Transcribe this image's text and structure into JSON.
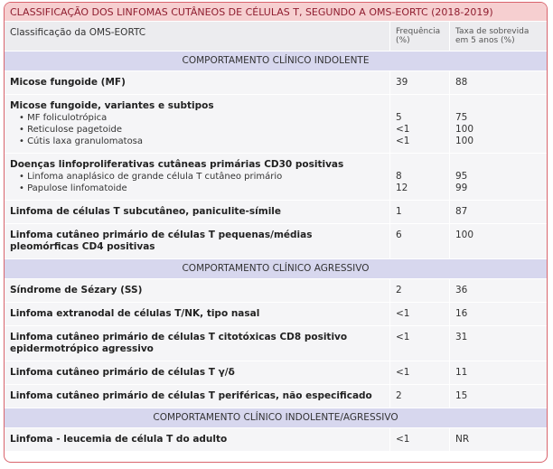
{
  "title": "CLASSIFICAÇÃO DOS LINFOMAS CUTÂNEOS DE CÉLULAS T, SEGUNDO A OMS-EORTC (2018-2019)",
  "header": [
    "Classificação da OMS-EORTC",
    "Frequência (%)",
    "Taxa de sobrevida em 5 anos (%)"
  ],
  "sections": [
    {
      "title": "COMPORTAMENTO CLÍNICO INDOLENTE",
      "rows": [
        {
          "label": "Micose fungoide (MF)",
          "freq": "39",
          "survival": "88"
        },
        {
          "label": "Micose fungoide, variantes e subtipos",
          "items": [
            {
              "label": "MF foliculotrópica",
              "freq": "5",
              "survival": "75"
            },
            {
              "label": "Reticulose pagetoide",
              "freq": "<1",
              "survival": "100"
            },
            {
              "label": "Cútis laxa granulomatosa",
              "freq": "<1",
              "survival": "100"
            }
          ]
        },
        {
          "label": "Doenças linfoproliferativas cutâneas primárias CD30 positivas",
          "items": [
            {
              "label": "Linfoma anaplásico de grande célula T cutâneo primário",
              "freq": "8",
              "survival": "95"
            },
            {
              "label": "Papulose linfomatoide",
              "freq": "12",
              "survival": "99"
            }
          ]
        },
        {
          "label": "Linfoma de células T subcutâneo, paniculite-símile",
          "freq": "1",
          "survival": "87"
        },
        {
          "label": [
            "Linfoma cutâneo primário de células T pequenas/médias",
            "pleomórficas CD4 positivas"
          ],
          "freq": "6",
          "survival": "100"
        }
      ]
    },
    {
      "title": "COMPORTAMENTO CLÍNICO AGRESSIVO",
      "rows": [
        {
          "label": "Síndrome de Sézary (SS)",
          "freq": "2",
          "survival": "36"
        },
        {
          "label": "Linfoma extranodal de células T/NK, tipo nasal",
          "freq": "<1",
          "survival": "16"
        },
        {
          "label": [
            "Linfoma cutâneo primário de células T citotóxicas CD8 positivo",
            "epidermotrópico agressivo"
          ],
          "freq": "<1",
          "survival": "31"
        },
        {
          "label": "Linfoma cutâneo primário de células T γ/δ",
          "freq": "<1",
          "survival": "11"
        },
        {
          "label": "Linfoma cutâneo primário de células T periféricas, não especificado",
          "freq": "2",
          "survival": "15"
        }
      ]
    },
    {
      "title": "COMPORTAMENTO CLÍNICO INDOLENTE/AGRESSIVO",
      "rows": [
        {
          "label": "Linfoma - leucemia de célula T do adulto",
          "freq": "<1",
          "survival": "NR"
        }
      ]
    }
  ]
}
